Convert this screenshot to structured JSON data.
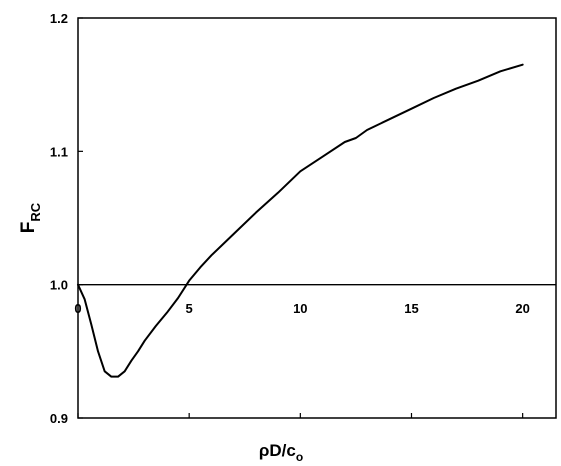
{
  "chart_data": {
    "type": "line",
    "xlabel": "ρD/c",
    "xlabel_sub": "o",
    "ylabel": "F",
    "ylabel_sub": "RC",
    "xlim": [
      0,
      21.5
    ],
    "ylim": [
      0.9,
      1.2
    ],
    "x_ticks": [
      "0",
      "5",
      "10",
      "15",
      "20"
    ],
    "y_ticks": [
      "0.9",
      "1.0",
      "1.1",
      "1.2"
    ],
    "grid": false,
    "reference_line_y": 1.0,
    "series": [
      {
        "x": [
          0,
          0.3,
          0.6,
          0.9,
          1.2,
          1.5,
          1.8,
          2.1,
          2.4,
          2.7,
          3.0,
          3.5,
          4.0,
          4.5,
          5.0,
          5.5,
          6.0,
          7.0,
          8.0,
          9.0,
          10.0,
          11.0,
          12.0,
          12.5,
          13.0,
          14.0,
          15.0,
          16.0,
          17.0,
          18.0,
          19.0,
          20.0
        ],
        "y": [
          1.0,
          0.989,
          0.97,
          0.95,
          0.935,
          0.931,
          0.931,
          0.935,
          0.943,
          0.95,
          0.958,
          0.969,
          0.979,
          0.99,
          1.003,
          1.013,
          1.022,
          1.038,
          1.054,
          1.069,
          1.085,
          1.096,
          1.107,
          1.11,
          1.116,
          1.124,
          1.132,
          1.14,
          1.147,
          1.153,
          1.16,
          1.165
        ]
      }
    ]
  }
}
